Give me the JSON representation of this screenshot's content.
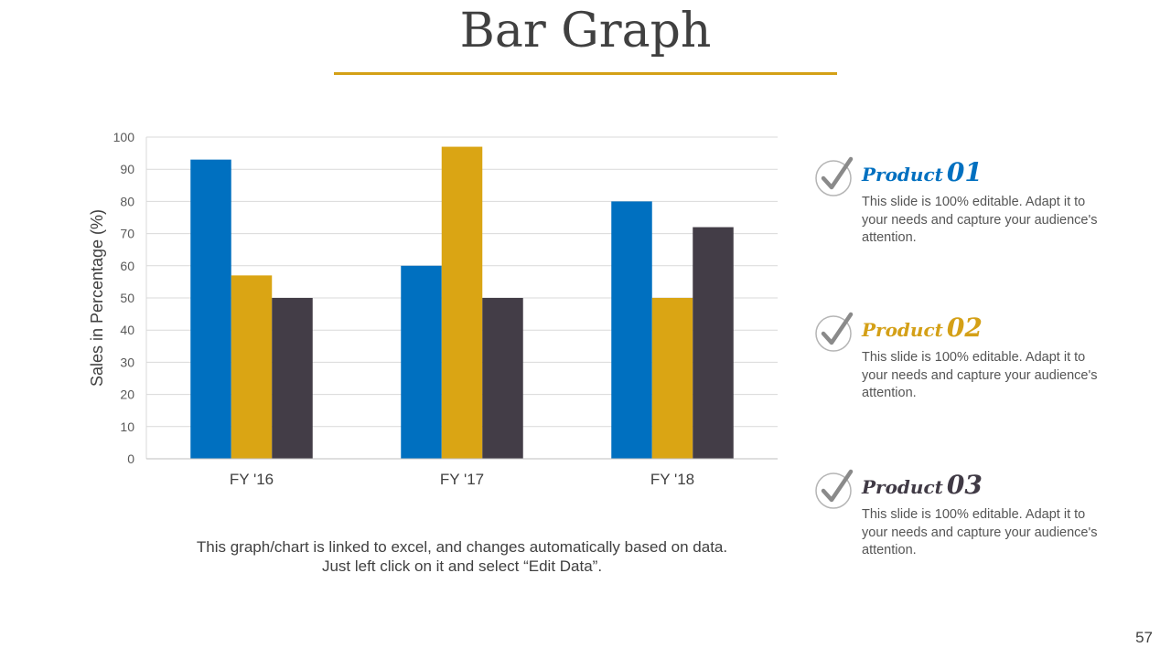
{
  "slide": {
    "title": "Bar Graph",
    "caption": "This graph/chart is linked to excel, and changes automatically based on data. Just left click on it and select “Edit Data”.",
    "page_number": "57",
    "accent_color": "#D4A017"
  },
  "products": [
    {
      "label": "Product",
      "number": "01",
      "color": "#0070C0",
      "text": "This slide is 100% editable. Adapt it to your needs and capture your audience's attention.",
      "icon": "checkmark-circle-icon"
    },
    {
      "label": "Product",
      "number": "02",
      "color": "#D4A017",
      "text": "This slide is 100% editable. Adapt it to your needs and capture your audience's attention.",
      "icon": "checkmark-circle-icon"
    },
    {
      "label": "Product",
      "number": "03",
      "color": "#403A45",
      "text": "This slide is 100% editable. Adapt it to your needs and capture your audience's attention.",
      "icon": "checkmark-circle-icon"
    }
  ],
  "chart_data": {
    "type": "bar",
    "categories": [
      "FY '16",
      "FY '17",
      "FY '18"
    ],
    "series": [
      {
        "values": [
          93,
          60,
          80
        ],
        "color": "#0070C0"
      },
      {
        "values": [
          57,
          97,
          50
        ],
        "color": "#DAA514"
      },
      {
        "values": [
          50,
          50,
          72
        ],
        "color": "#433D47"
      }
    ],
    "ylabel": "Sales in Percentage (%)",
    "ylim": [
      0,
      100
    ],
    "yticks": [
      0,
      10,
      20,
      30,
      40,
      50,
      60,
      70,
      80,
      90,
      100
    ],
    "grid": true
  }
}
